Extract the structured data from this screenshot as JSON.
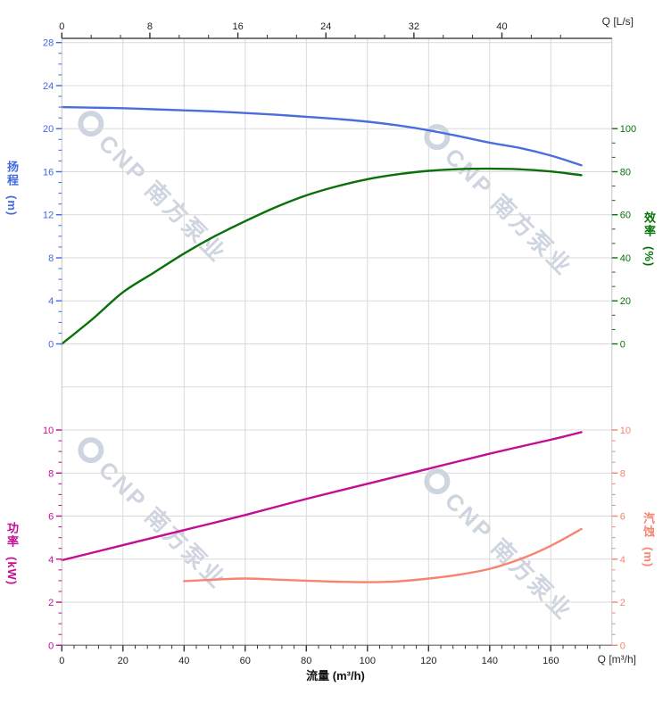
{
  "chart_data": {
    "type": "line",
    "title": "",
    "x_bottom": {
      "corner_label": "Q [m³/h]",
      "axis_title": "流量 (m³/h)",
      "unit": "m³/h",
      "range": [
        0,
        180
      ],
      "major_ticks": [
        0,
        20,
        40,
        60,
        80,
        100,
        120,
        140,
        160
      ],
      "minor_step": 4
    },
    "x_top": {
      "corner_label": "Q [L/s]",
      "unit": "L/s",
      "range": [
        0,
        50
      ],
      "major_ticks": [
        0,
        8,
        16,
        24,
        32,
        40
      ],
      "minor_divisions": 3
    },
    "axes": {
      "head": {
        "title": "扬程",
        "unit": "(m)",
        "color": "#4169E1",
        "range": [
          0,
          28
        ],
        "major_ticks": [
          0,
          4,
          8,
          12,
          16,
          20,
          24,
          28
        ],
        "minor_step": 1,
        "side": "left",
        "panel": "top"
      },
      "efficiency": {
        "title": "效率",
        "unit": "(%)",
        "color": "#077307",
        "range": [
          0,
          100
        ],
        "major_ticks": [
          0,
          20,
          40,
          60,
          80,
          100
        ],
        "minor_divisions": 3,
        "side": "right",
        "panel": "top"
      },
      "power": {
        "title": "功率",
        "unit": "(kW)",
        "color": "#C40D93",
        "range": [
          0,
          10
        ],
        "major_ticks": [
          0,
          2,
          4,
          6,
          8,
          10
        ],
        "minor_step": 0.5,
        "side": "left",
        "panel": "bottom"
      },
      "npsh": {
        "title": "汽蚀",
        "unit": "(m)",
        "color": "#F8836F",
        "range": [
          0,
          10
        ],
        "major_ticks": [
          0,
          2,
          4,
          6,
          8,
          10
        ],
        "minor_step": 0.5,
        "side": "right",
        "panel": "bottom"
      }
    },
    "series": [
      {
        "name": "head",
        "axis": "head",
        "color": "#4A6EDB",
        "points": [
          [
            0,
            22
          ],
          [
            10,
            21.95
          ],
          [
            20,
            21.9
          ],
          [
            30,
            21.8
          ],
          [
            40,
            21.7
          ],
          [
            50,
            21.6
          ],
          [
            60,
            21.45
          ],
          [
            70,
            21.3
          ],
          [
            80,
            21.1
          ],
          [
            90,
            20.9
          ],
          [
            100,
            20.65
          ],
          [
            110,
            20.3
          ],
          [
            120,
            19.85
          ],
          [
            130,
            19.3
          ],
          [
            140,
            18.7
          ],
          [
            150,
            18.2
          ],
          [
            160,
            17.5
          ],
          [
            170,
            16.6
          ]
        ]
      },
      {
        "name": "efficiency",
        "axis": "efficiency",
        "color": "#0A700A",
        "points": [
          [
            0,
            0
          ],
          [
            10,
            11.5
          ],
          [
            20,
            24
          ],
          [
            30,
            33
          ],
          [
            40,
            42
          ],
          [
            50,
            50
          ],
          [
            60,
            57
          ],
          [
            70,
            63.5
          ],
          [
            80,
            69
          ],
          [
            90,
            73.2
          ],
          [
            100,
            76.5
          ],
          [
            110,
            78.8
          ],
          [
            120,
            80.4
          ],
          [
            130,
            81.2
          ],
          [
            140,
            81.4
          ],
          [
            150,
            81.1
          ],
          [
            160,
            80.1
          ],
          [
            170,
            78.4
          ]
        ]
      },
      {
        "name": "power",
        "axis": "power",
        "color": "#C40D93",
        "points": [
          [
            0,
            3.95
          ],
          [
            20,
            4.65
          ],
          [
            40,
            5.35
          ],
          [
            60,
            6.05
          ],
          [
            80,
            6.8
          ],
          [
            100,
            7.5
          ],
          [
            120,
            8.2
          ],
          [
            140,
            8.9
          ],
          [
            160,
            9.55
          ],
          [
            170,
            9.9
          ]
        ]
      },
      {
        "name": "npsh",
        "axis": "npsh",
        "color": "#F8836F",
        "points": [
          [
            40,
            2.98
          ],
          [
            50,
            3.05
          ],
          [
            60,
            3.1
          ],
          [
            70,
            3.05
          ],
          [
            80,
            3.0
          ],
          [
            90,
            2.95
          ],
          [
            100,
            2.93
          ],
          [
            110,
            2.97
          ],
          [
            120,
            3.1
          ],
          [
            130,
            3.28
          ],
          [
            140,
            3.55
          ],
          [
            150,
            4.0
          ],
          [
            160,
            4.62
          ],
          [
            170,
            5.4
          ]
        ]
      }
    ],
    "grid": {
      "on": true,
      "color": "#d9d9d9"
    },
    "watermark": {
      "text": "CNP 南方泵业",
      "color": "rgba(165,178,199,0.55)"
    }
  }
}
